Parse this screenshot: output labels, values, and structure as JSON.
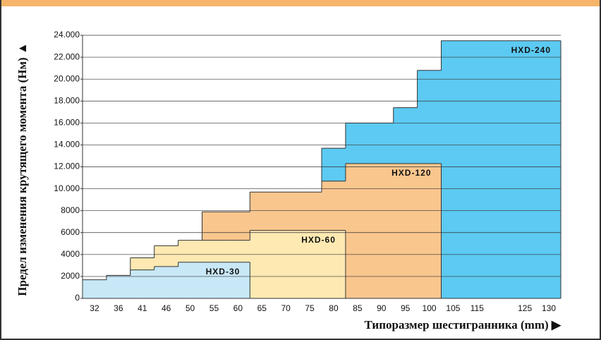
{
  "chart_data": {
    "type": "step-area",
    "y_label": "Предел изменения крутящего момента  (Нм) ▲",
    "x_label": "Типоразмер шестигранника  (mm) ▶",
    "categories": [
      "32",
      "36",
      "41",
      "46",
      "50",
      "55",
      "60",
      "65",
      "70",
      "75",
      "80",
      "85",
      "90",
      "95",
      "100",
      "105",
      "115",
      null,
      "125",
      "130"
    ],
    "series": [
      {
        "name": "HXD-240",
        "color": "#5ccaf2",
        "values": [
          null,
          null,
          null,
          null,
          null,
          null,
          null,
          null,
          null,
          null,
          13700,
          16000,
          16000,
          17400,
          20800,
          23500,
          23500,
          23500,
          23500,
          23500
        ]
      },
      {
        "name": "HXD-120",
        "color": "#f9c68e",
        "values": [
          null,
          null,
          null,
          null,
          null,
          7900,
          7900,
          9700,
          9700,
          9700,
          10700,
          12300,
          12300,
          12300,
          12300,
          null,
          null,
          null,
          null,
          null
        ]
      },
      {
        "name": "HXD-60",
        "color": "#fee9b2",
        "values": [
          null,
          null,
          3700,
          4800,
          5300,
          5300,
          5300,
          6200,
          6200,
          6200,
          6200,
          null,
          null,
          null,
          null,
          null,
          null,
          null,
          null,
          null
        ]
      },
      {
        "name": "HXD-30",
        "color": "#c8e8f7",
        "values": [
          1700,
          2100,
          2600,
          2900,
          3300,
          3300,
          3300,
          null,
          null,
          null,
          null,
          null,
          null,
          null,
          null,
          null,
          null,
          null,
          null,
          null
        ]
      }
    ],
    "ylim": [
      0,
      24000
    ],
    "yticks": [
      0,
      2000,
      4000,
      6000,
      8000,
      {
        "value": 10000,
        "label": "10.000"
      },
      {
        "value": 12000,
        "label": "12.000"
      },
      {
        "value": 14000,
        "label": "14.000"
      },
      {
        "value": 16000,
        "label": "16.000"
      },
      {
        "value": 18000,
        "label": "18.000"
      },
      {
        "value": 20000,
        "label": "20.000"
      },
      {
        "value": 22000,
        "label": "22.000"
      },
      {
        "value": 24000,
        "label": "24.000"
      }
    ],
    "grid": true
  }
}
